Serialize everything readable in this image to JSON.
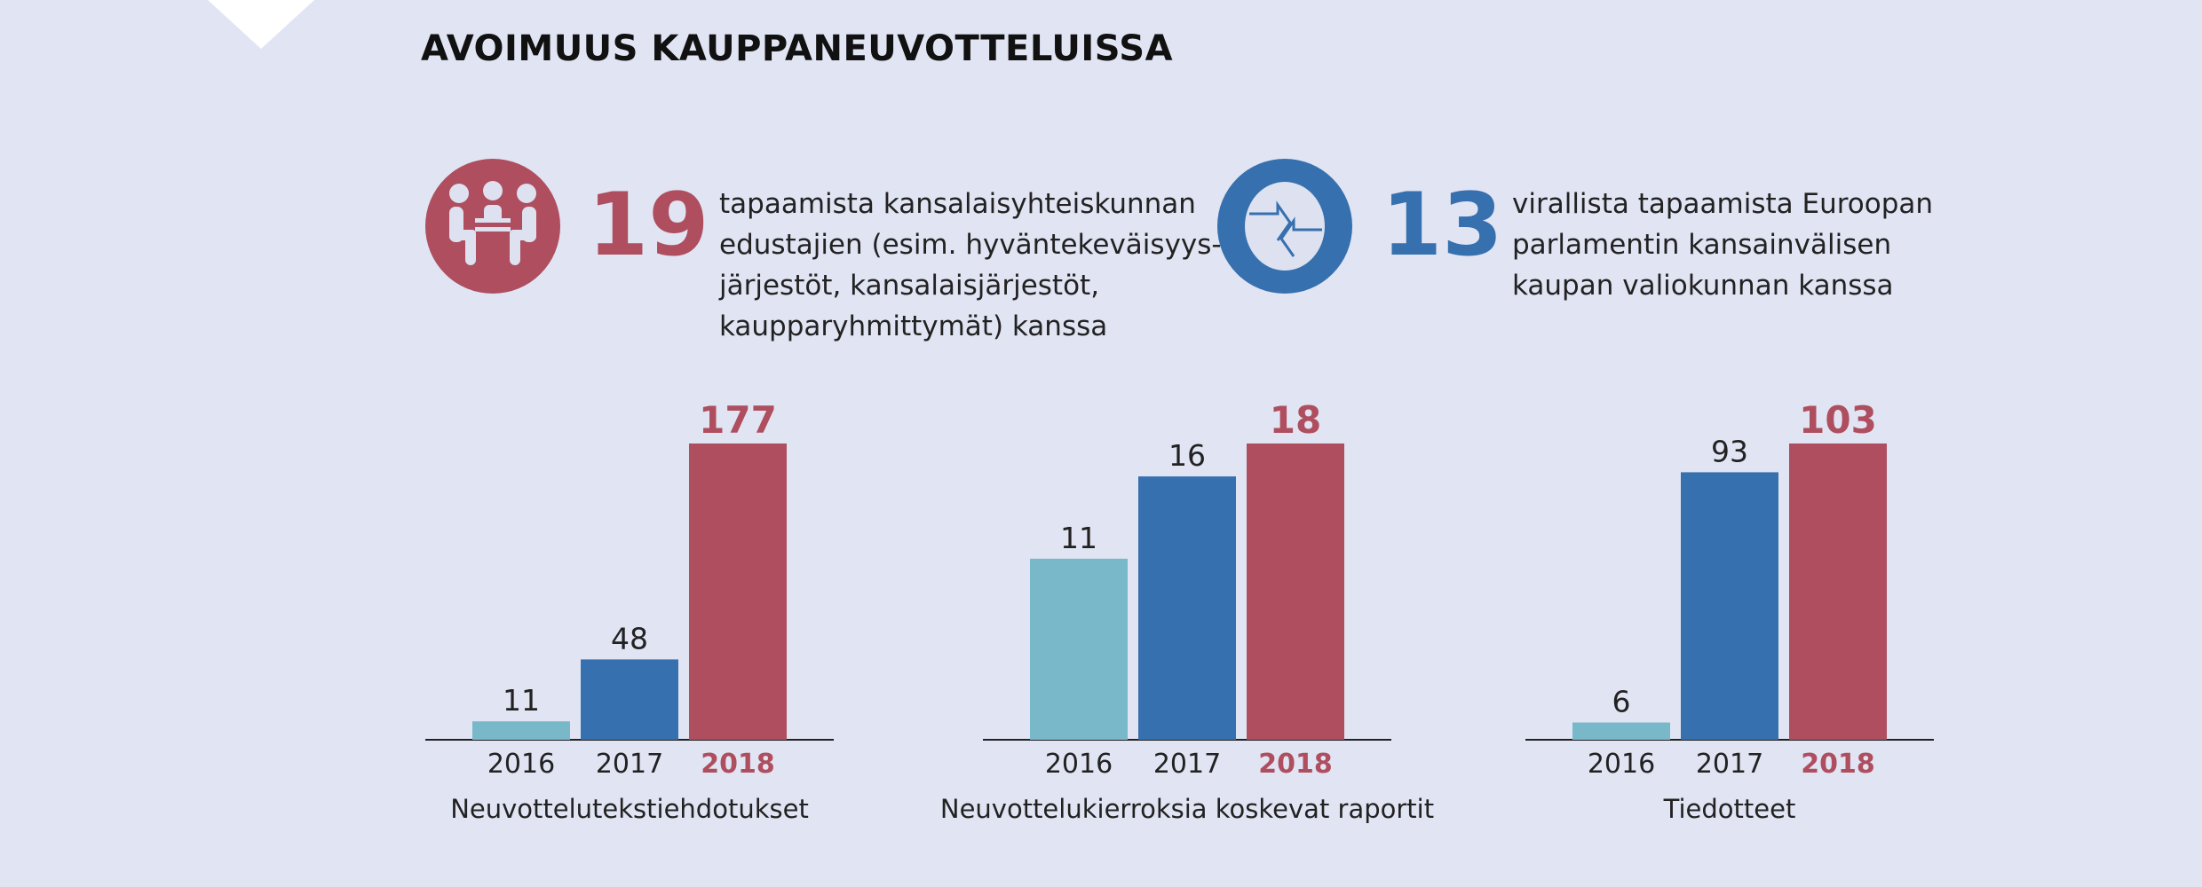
{
  "title": "AVOIMUUS KAUPPANEUVOTTELUISSA",
  "colors": {
    "background": "#e1e4f3",
    "red": "#ae4e5e",
    "blue": "#3670ae",
    "teal": "#78b8c8"
  },
  "stats": [
    {
      "icon": "people-meeting-icon",
      "value": "19",
      "color": "#ae4e5e",
      "text": "tapaamista kansalaisyhteiskunnan\nedustajien (esim. hyväntekeväisyys-\njärjestöt, kansalaisjärjestöt,\nkaupparyhmittymät) kanssa"
    },
    {
      "icon": "exchange-arrows-icon",
      "value": "13",
      "color": "#3670ae",
      "text": "virallista tapaamista Euroopan\nparlamentin kansainvälisen\nkaupan valiokunnan kanssa"
    }
  ],
  "chart_data": [
    {
      "type": "bar",
      "title": "Neuvottelutekstiehdotukset",
      "categories": [
        "2016",
        "2017",
        "2018"
      ],
      "values": [
        11,
        48,
        177
      ],
      "colors": [
        "#78b8c8",
        "#3670ae",
        "#ae4e5e"
      ]
    },
    {
      "type": "bar",
      "title": "Neuvottelukierroksia koskevat raportit",
      "categories": [
        "2016",
        "2017",
        "2018"
      ],
      "values": [
        11,
        16,
        18
      ],
      "colors": [
        "#78b8c8",
        "#3670ae",
        "#ae4e5e"
      ]
    },
    {
      "type": "bar",
      "title": "Tiedotteet",
      "categories": [
        "2016",
        "2017",
        "2018"
      ],
      "values": [
        6,
        93,
        103
      ],
      "colors": [
        "#78b8c8",
        "#3670ae",
        "#ae4e5e"
      ]
    }
  ]
}
